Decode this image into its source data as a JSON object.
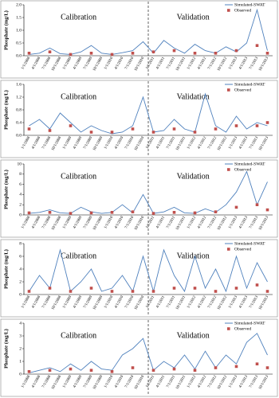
{
  "chart_data": [
    {
      "type": "line",
      "ylabel": "Phosphate (mg/L)",
      "annotations": [
        "Calibration",
        "Validation"
      ],
      "categories": [
        "1/1/2008",
        "4/1/2008",
        "7/1/2008",
        "10/1/2008",
        "1/1/2009",
        "4/1/2009",
        "7/1/2009",
        "10/1/2009",
        "1/1/2010",
        "4/1/2010",
        "7/1/2010",
        "10/1/2010",
        "1/1/2011",
        "4/1/2011",
        "7/1/2011",
        "10/1/2011",
        "1/1/2012",
        "4/1/2012",
        "7/1/2012",
        "10/1/2012",
        "1/1/2013",
        "4/1/2013",
        "7/1/2013",
        "10/1/2013"
      ],
      "series": [
        {
          "name": "Simulated-SWAT",
          "color": "#4f81bd",
          "marker": "none",
          "values": [
            0.05,
            0.1,
            0.3,
            0.08,
            0.05,
            0.15,
            0.4,
            0.1,
            0.05,
            0.12,
            0.2,
            0.55,
            0.1,
            0.6,
            0.3,
            0.1,
            0.45,
            0.2,
            0.1,
            0.35,
            0.15,
            0.5,
            1.8,
            0.2
          ]
        },
        {
          "name": "Observed",
          "color": "#c0504d",
          "marker": "square",
          "values": [
            0.1,
            null,
            0.15,
            null,
            0.05,
            null,
            0.1,
            null,
            0.05,
            null,
            0.1,
            null,
            0.15,
            null,
            0.2,
            null,
            0.1,
            null,
            0.1,
            null,
            0.2,
            null,
            0.4,
            0.1
          ]
        }
      ],
      "ylim": [
        0,
        2
      ],
      "yticks": [
        {
          "value": 0,
          "label": "0.0"
        },
        {
          "value": 0.5,
          "label": "0.5"
        },
        {
          "value": 1,
          "label": "1.0"
        },
        {
          "value": 1.5,
          "label": "1.5"
        },
        {
          "value": 2,
          "label": "2.0"
        }
      ]
    },
    {
      "type": "line",
      "ylabel": "Phosphate (mg/L)",
      "annotations": [
        "Calibration",
        "Validation"
      ],
      "categories": [
        "1/1/2008",
        "4/1/2008",
        "7/1/2008",
        "10/1/2008",
        "1/1/2009",
        "4/1/2009",
        "7/1/2009",
        "10/1/2009",
        "1/1/2010",
        "4/1/2010",
        "7/1/2010",
        "10/1/2010",
        "1/1/2011",
        "4/1/2011",
        "7/1/2011",
        "10/1/2011",
        "1/1/2012",
        "4/1/2012",
        "7/1/2012",
        "10/1/2012",
        "1/1/2013",
        "4/1/2013",
        "7/1/2013",
        "10/1/2013"
      ],
      "series": [
        {
          "name": "Simulated-SWAT",
          "color": "#4f81bd",
          "marker": "none",
          "values": [
            0.3,
            0.5,
            0.2,
            0.7,
            0.4,
            0.1,
            0.3,
            0.15,
            0.05,
            0.1,
            0.3,
            1.2,
            0.1,
            0.15,
            0.5,
            0.2,
            0.1,
            1.3,
            0.3,
            0.1,
            0.6,
            0.2,
            0.4,
            0.3
          ]
        },
        {
          "name": "Observed",
          "color": "#c0504d",
          "marker": "square",
          "values": [
            0.2,
            null,
            0.15,
            null,
            0.3,
            null,
            0.1,
            null,
            0.1,
            null,
            0.2,
            null,
            0.1,
            null,
            0.2,
            null,
            0.1,
            null,
            0.2,
            null,
            0.3,
            null,
            0.3,
            0.4
          ]
        }
      ],
      "ylim": [
        0,
        1.6
      ],
      "yticks": [
        {
          "value": 0,
          "label": "0.0"
        },
        {
          "value": 0.4,
          "label": "0.4"
        },
        {
          "value": 0.8,
          "label": "0.8"
        },
        {
          "value": 1.2,
          "label": "1.2"
        },
        {
          "value": 1.6,
          "label": "1.6"
        }
      ]
    },
    {
      "type": "line",
      "ylabel": "Phosphate (mg/L)",
      "annotations": [
        "Calibration",
        "Validation"
      ],
      "categories": [
        "1/1/2008",
        "4/1/2008",
        "7/1/2008",
        "10/1/2008",
        "1/1/2009",
        "4/1/2009",
        "7/1/2009",
        "10/1/2009",
        "1/1/2010",
        "4/1/2010",
        "7/1/2010",
        "10/1/2010",
        "1/1/2011",
        "4/1/2011",
        "7/1/2011",
        "10/1/2011",
        "1/1/2012",
        "4/1/2012",
        "7/1/2012",
        "10/1/2012",
        "1/1/2013",
        "4/1/2013",
        "7/1/2013",
        "10/1/2013"
      ],
      "series": [
        {
          "name": "Simulated-SWAT",
          "color": "#4f81bd",
          "marker": "none",
          "values": [
            0.3,
            0.5,
            1,
            0.4,
            0.3,
            1.5,
            0.6,
            0.3,
            0.5,
            2,
            0.4,
            4,
            0.3,
            0.6,
            1.5,
            0.4,
            0.3,
            1.2,
            0.5,
            2,
            4.5,
            8.5,
            2,
            6.5
          ]
        },
        {
          "name": "Observed",
          "color": "#c0504d",
          "marker": "square",
          "values": [
            0.4,
            null,
            0.5,
            null,
            0.3,
            null,
            0.4,
            null,
            0.5,
            null,
            0.6,
            null,
            0.3,
            null,
            0.5,
            null,
            0.4,
            null,
            0.6,
            null,
            1.5,
            null,
            2,
            1
          ]
        }
      ],
      "ylim": [
        0,
        10
      ],
      "yticks": [
        0,
        2,
        4,
        6,
        8,
        10
      ]
    },
    {
      "type": "line",
      "ylabel": "Phosphate (mg/L)",
      "annotations": [
        "Calibration",
        "Validation"
      ],
      "categories": [
        "1/1/2008",
        "4/1/2008",
        "7/1/2008",
        "10/1/2008",
        "1/1/2009",
        "4/1/2009",
        "7/1/2009",
        "10/1/2009",
        "1/1/2010",
        "4/1/2010",
        "7/1/2010",
        "10/1/2010",
        "1/1/2011",
        "4/1/2011",
        "7/1/2011",
        "10/1/2011",
        "1/1/2012",
        "4/1/2012",
        "7/1/2012",
        "10/1/2012",
        "1/1/2013",
        "4/1/2013",
        "7/1/2013",
        "10/1/2013"
      ],
      "series": [
        {
          "name": "Simulated-SWAT",
          "color": "#4f81bd",
          "marker": "none",
          "values": [
            0.5,
            3,
            1,
            7,
            0.5,
            2,
            4,
            0.5,
            1,
            3,
            0.5,
            6,
            0.5,
            7,
            3,
            0.5,
            6,
            1,
            4,
            0.5,
            6,
            1,
            5,
            2
          ]
        },
        {
          "name": "Observed",
          "color": "#c0504d",
          "marker": "square",
          "values": [
            0.5,
            null,
            1,
            null,
            0.5,
            null,
            1,
            null,
            0.5,
            null,
            0.5,
            null,
            0.5,
            null,
            1,
            null,
            1,
            null,
            0.5,
            null,
            1,
            null,
            1.5,
            0.5
          ]
        }
      ],
      "ylim": [
        0,
        8
      ],
      "yticks": [
        0,
        2,
        4,
        6,
        8
      ]
    },
    {
      "type": "line",
      "ylabel": "Phosphate (mg/L)",
      "annotations": [
        "Calibration",
        "Validation"
      ],
      "categories": [
        "1/1/2008",
        "4/1/2008",
        "7/1/2008",
        "10/1/2008",
        "1/1/2009",
        "4/1/2009",
        "7/1/2009",
        "10/1/2009",
        "1/1/2010",
        "4/1/2010",
        "7/1/2010",
        "10/1/2010",
        "1/1/2011",
        "4/1/2011",
        "7/1/2011",
        "10/1/2011",
        "1/1/2012",
        "4/1/2012",
        "7/1/2012",
        "10/1/2012",
        "1/1/2013",
        "4/1/2013",
        "7/1/2013",
        "10/1/2013"
      ],
      "series": [
        {
          "name": "Simulated-SWAT",
          "color": "#4f81bd",
          "marker": "none",
          "values": [
            0.1,
            0.3,
            0.5,
            0.2,
            0.8,
            0.3,
            1,
            0.4,
            0.3,
            1.5,
            2,
            2.8,
            0.3,
            1,
            0.5,
            1.5,
            0.4,
            1.8,
            0.5,
            1.5,
            0.8,
            2.5,
            3.2,
            1.5
          ]
        },
        {
          "name": "Observed",
          "color": "#c0504d",
          "marker": "square",
          "values": [
            0.2,
            null,
            0.3,
            null,
            0.4,
            null,
            0.3,
            null,
            0.2,
            null,
            0.5,
            null,
            0.3,
            null,
            0.4,
            null,
            0.3,
            null,
            0.5,
            null,
            0.6,
            null,
            0.8,
            0.5
          ]
        }
      ],
      "ylim": [
        0,
        4
      ],
      "yticks": [
        0,
        1,
        2,
        3,
        4
      ]
    }
  ]
}
